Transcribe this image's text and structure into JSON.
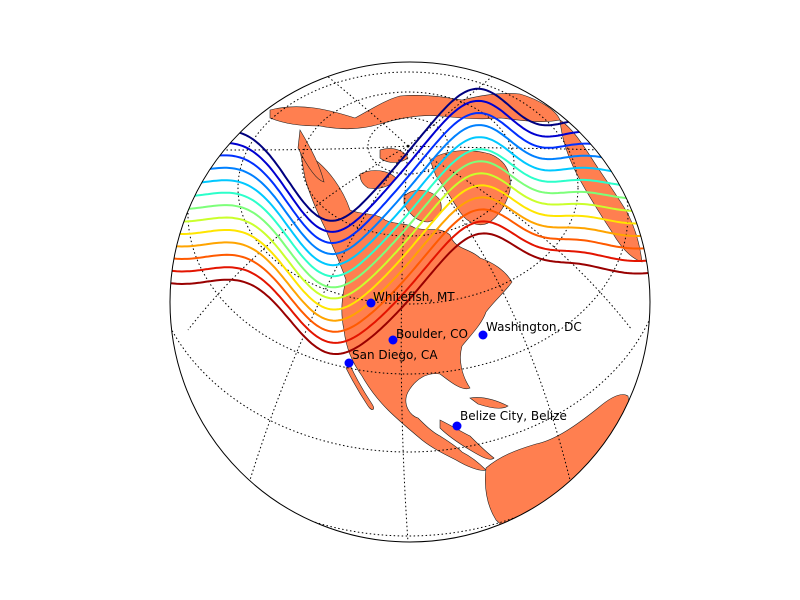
{
  "map": {
    "projection": "orthographic",
    "colors": {
      "land": "#ff7f50",
      "coast": "#222222",
      "ocean": "#ffffff",
      "graticule": "#000000",
      "city_marker": "#0000ff"
    },
    "cities": [
      {
        "name": "Whitefish, MT"
      },
      {
        "name": "Boulder, CO"
      },
      {
        "name": "Washington, DC"
      },
      {
        "name": "San Diego, CA"
      },
      {
        "name": "Belize City, Belize"
      }
    ],
    "contour_colors": [
      "#00007f",
      "#0000d0",
      "#0030ff",
      "#0080ff",
      "#00c8ff",
      "#2cffca",
      "#7dff7a",
      "#caff2c",
      "#ffe500",
      "#ffa400",
      "#ff5a00",
      "#e31400",
      "#990000"
    ]
  }
}
